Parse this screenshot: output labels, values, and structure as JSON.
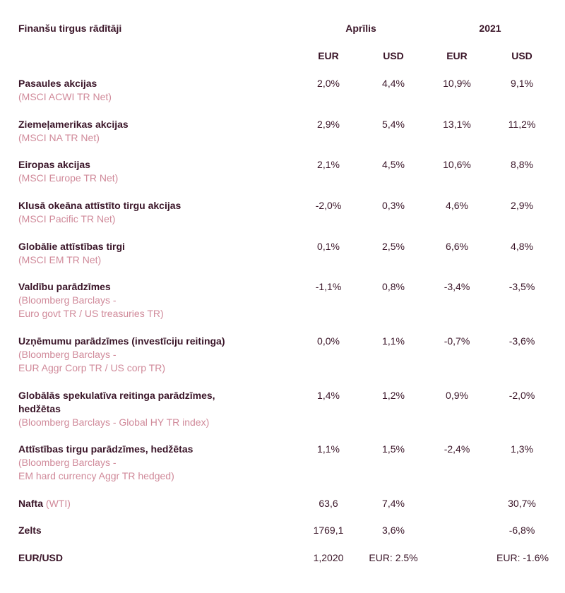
{
  "header": {
    "title": "Finanšu tirgus rādītāji",
    "period_april": "Aprīlis",
    "period_year": "2021",
    "col_eur_1": "EUR",
    "col_usd_1": "USD",
    "col_eur_2": "EUR",
    "col_usd_2": "USD"
  },
  "rows": [
    {
      "name": "Pasaules akcijas",
      "sub": "(MSCI ACWI TR Net)",
      "v1": "2,0%",
      "v2": "4,4%",
      "v3": "10,9%",
      "v4": "9,1%"
    },
    {
      "name": "Ziemeļamerikas akcijas",
      "sub": "(MSCI NA TR Net)",
      "v1": "2,9%",
      "v2": "5,4%",
      "v3": "13,1%",
      "v4": "11,2%"
    },
    {
      "name": "Eiropas akcijas",
      "sub": "(MSCI Europe TR Net)",
      "v1": "2,1%",
      "v2": "4,5%",
      "v3": "10,6%",
      "v4": "8,8%"
    },
    {
      "name": "Klusā okeāna attīstīto tirgu akcijas",
      "sub": "(MSCI Pacific TR Net)",
      "v1": "-2,0%",
      "v2": "0,3%",
      "v3": "4,6%",
      "v4": "2,9%"
    },
    {
      "name": "Globālie attīstības tirgi",
      "sub": "(MSCI EM TR Net)",
      "v1": "0,1%",
      "v2": "2,5%",
      "v3": "6,6%",
      "v4": "4,8%"
    },
    {
      "name": "Valdību parādzīmes",
      "sub": "(Bloomberg Barclays -",
      "sub2": "Euro govt TR / US treasuries TR)",
      "v1": "-1,1%",
      "v2": "0,8%",
      "v3": "-3,4%",
      "v4": "-3,5%"
    },
    {
      "name": "Uzņēmumu parādzīmes (investīciju reitinga)",
      "sub": "(Bloomberg Barclays -",
      "sub2": "EUR Aggr Corp TR / US corp TR)",
      "v1": "0,0%",
      "v2": "1,1%",
      "v3": "-0,7%",
      "v4": "-3,6%"
    },
    {
      "name": "Globālās spekulatīva reitinga parādzīmes,",
      "name2": "hedžētas",
      "sub": "(Bloomberg Barclays - Global HY TR index)",
      "v1": "1,4%",
      "v2": "1,2%",
      "v3": "0,9%",
      "v4": "-2,0%"
    },
    {
      "name": "Attīstības tirgu parādzīmes, hedžētas",
      "sub": "(Bloomberg Barclays -",
      "sub2": "EM hard currency Aggr TR hedged)",
      "v1": "1,1%",
      "v2": "1,5%",
      "v3": "-2,4%",
      "v4": "1,3%"
    },
    {
      "name": "Nafta",
      "inline_sub": "(WTI)",
      "v1": "63,6",
      "v2": "7,4%",
      "v3": "",
      "v4": "30,7%"
    },
    {
      "name": "Zelts",
      "v1": "1769,1",
      "v2": "3,6%",
      "v3": "",
      "v4": "-6,8%"
    },
    {
      "name": "EUR/USD",
      "v1": "1,2020",
      "v2": "EUR: 2.5%",
      "v3": "",
      "v4": "EUR: -1.6%"
    }
  ]
}
